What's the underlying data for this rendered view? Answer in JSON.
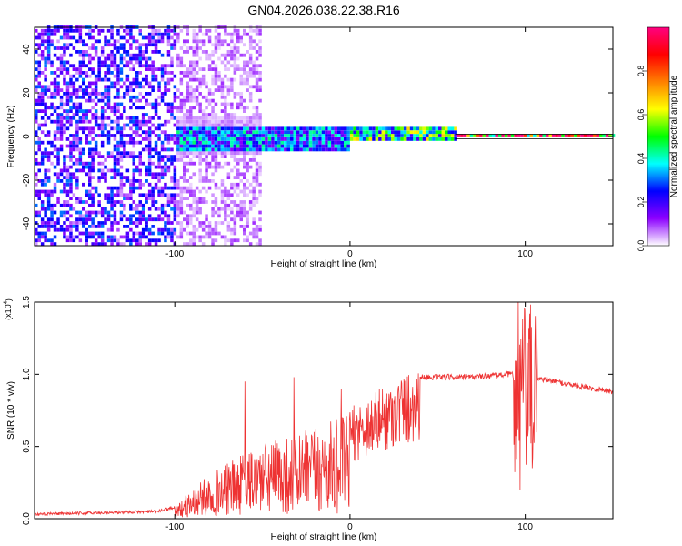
{
  "title": "GN04.2026.038.22.38.R16",
  "chart_data": [
    {
      "type": "heatmap",
      "xlabel": "Height of straight line (km)",
      "ylabel": "Frequency (Hz)",
      "xlim": [
        -180,
        150
      ],
      "ylim": [
        -50,
        50
      ],
      "xticks": [
        -100,
        0,
        100
      ],
      "yticks": [
        -40,
        -20,
        0,
        20,
        40
      ],
      "colorbar": {
        "label": "Normalized spectral amplitude",
        "range": [
          0,
          1
        ],
        "ticks": [
          0.0,
          0.2,
          0.4,
          0.6,
          0.8
        ],
        "tick_labels": [
          "0.0",
          "0.2",
          "0.4",
          "0.6",
          "0.8"
        ],
        "colors": [
          "#ffffff",
          "#8c00ff",
          "#0000ff",
          "#00ffff",
          "#00ff00",
          "#ffff00",
          "#ff8000",
          "#ff0000",
          "#ff0080"
        ]
      },
      "regions": [
        {
          "x": [
            -180,
            -100
          ],
          "y": [
            -50,
            50
          ],
          "amplitude": 0.15
        },
        {
          "x": [
            -100,
            -52
          ],
          "y": [
            -50,
            50
          ],
          "amplitude": 0.05
        },
        {
          "x": [
            -100,
            0
          ],
          "y": [
            -8,
            3
          ],
          "amplitude": 0.3
        },
        {
          "x": [
            0,
            60
          ],
          "y": [
            -3,
            3
          ],
          "amplitude": 0.45
        },
        {
          "x": [
            60,
            150
          ],
          "y": [
            -1,
            1
          ],
          "amplitude": 0.9
        }
      ]
    },
    {
      "type": "line",
      "xlabel": "Height of straight line (km)",
      "ylabel": "SNR (10 * v/v)",
      "y_multiplier": "(x10^4)",
      "multiplier_base": "(x10",
      "multiplier_exp": "4",
      "multiplier_close": ")",
      "xlim": [
        -180,
        150
      ],
      "ylim": [
        0,
        1.5
      ],
      "xticks": [
        -100,
        0,
        100
      ],
      "yticks": [
        0.0,
        0.5,
        1.0,
        1.5
      ],
      "ytick_labels": [
        "0.0",
        "0.5",
        "1.0",
        "1.5"
      ],
      "color": "#ee3333",
      "envelope": [
        {
          "x": -180,
          "y": 0.03
        },
        {
          "x": -110,
          "y": 0.05
        },
        {
          "x": -100,
          "y": 0.08
        },
        {
          "x": -80,
          "y": 0.3
        },
        {
          "x": -50,
          "y": 0.5
        },
        {
          "x": -20,
          "y": 0.6
        },
        {
          "x": 0,
          "y": 0.7
        },
        {
          "x": 20,
          "y": 0.85
        },
        {
          "x": 40,
          "y": 0.98
        },
        {
          "x": 70,
          "y": 0.98
        },
        {
          "x": 90,
          "y": 1.0
        },
        {
          "x": 100,
          "y": 1.0
        },
        {
          "x": 108,
          "y": 0.97
        },
        {
          "x": 130,
          "y": 0.92
        },
        {
          "x": 150,
          "y": 0.88
        }
      ],
      "spikes": [
        {
          "x": -60,
          "y": 0.95
        },
        {
          "x": -32,
          "y": 0.98
        },
        {
          "x": -5,
          "y": 0.9
        },
        {
          "x": 96,
          "y": 1.5
        },
        {
          "x": 97,
          "y": 0.2
        },
        {
          "x": 104,
          "y": 0.35
        }
      ]
    }
  ]
}
